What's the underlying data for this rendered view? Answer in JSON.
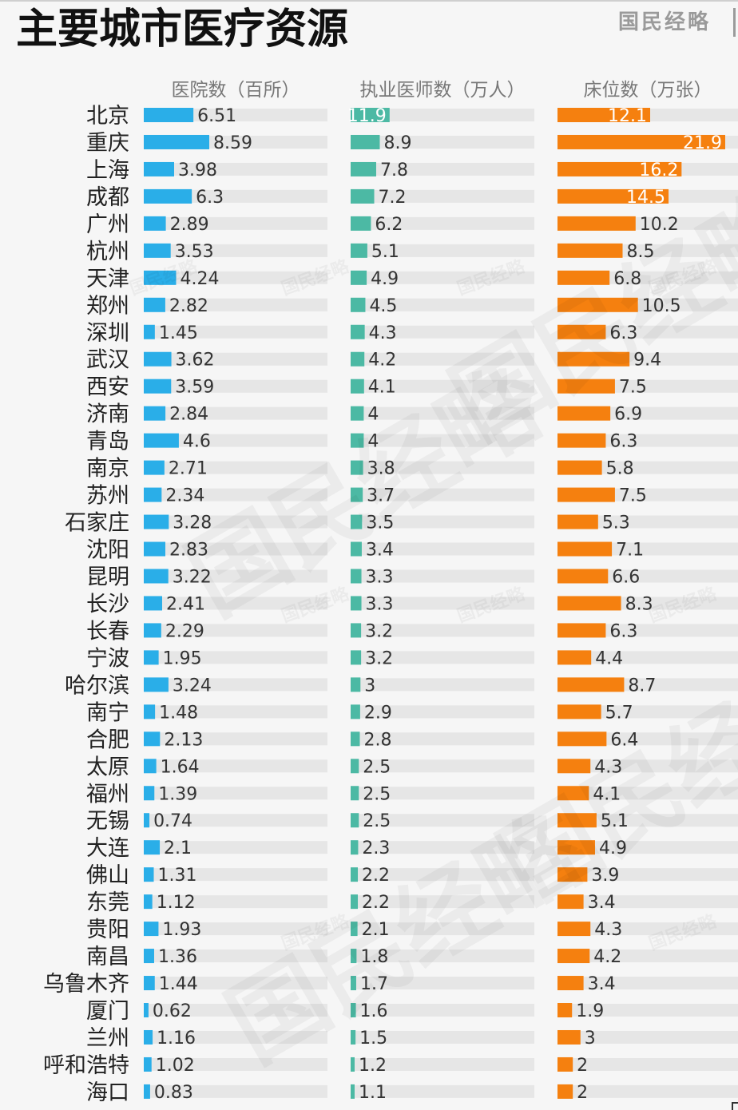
{
  "title": "主要城市医疗资源",
  "logo": "国民经略",
  "watermark": "国民经略",
  "colors": {
    "hospitals": "#2aaee8",
    "doctors": "#4cb9a4",
    "beds": "#f5800f",
    "track": "#e6e6e6"
  },
  "chart_data": {
    "type": "bar",
    "orientation": "horizontal",
    "categories": [
      "北京",
      "重庆",
      "上海",
      "成都",
      "广州",
      "杭州",
      "天津",
      "郑州",
      "深圳",
      "武汉",
      "西安",
      "济南",
      "青岛",
      "南京",
      "苏州",
      "石家庄",
      "沈阳",
      "昆明",
      "长沙",
      "长春",
      "宁波",
      "哈尔滨",
      "南宁",
      "合肥",
      "太原",
      "福州",
      "无锡",
      "大连",
      "佛山",
      "东莞",
      "贵阳",
      "南昌",
      "乌鲁木齐",
      "厦门",
      "兰州",
      "呼和浩特",
      "海口"
    ],
    "series": [
      {
        "name": "医院数（百所）",
        "max": 8.59,
        "values": [
          6.51,
          8.59,
          3.98,
          6.3,
          2.89,
          3.53,
          4.24,
          2.82,
          1.45,
          3.62,
          3.59,
          2.84,
          4.6,
          2.71,
          2.34,
          3.28,
          2.83,
          3.22,
          2.41,
          2.29,
          1.95,
          3.24,
          1.48,
          2.13,
          1.64,
          1.39,
          0.74,
          2.1,
          1.31,
          1.12,
          1.93,
          1.36,
          1.44,
          0.62,
          1.16,
          1.02,
          0.83
        ]
      },
      {
        "name": "执业医师数（万人）",
        "max": 20.0,
        "values": [
          11.9,
          8.9,
          7.8,
          7.2,
          6.2,
          5.1,
          4.9,
          4.5,
          4.3,
          4.2,
          4.1,
          4,
          4,
          3.8,
          3.7,
          3.5,
          3.4,
          3.3,
          3.3,
          3.2,
          3.2,
          3,
          2.9,
          2.8,
          2.5,
          2.5,
          2.5,
          2.3,
          2.2,
          2.2,
          2.1,
          1.8,
          1.7,
          1.6,
          1.5,
          1.2,
          1.1
        ]
      },
      {
        "name": "床位数（万张）",
        "max": 21.9,
        "values": [
          12.1,
          21.9,
          16.2,
          14.5,
          10.2,
          8.5,
          6.8,
          10.5,
          6.3,
          9.4,
          7.5,
          6.9,
          6.3,
          5.8,
          7.5,
          5.3,
          7.1,
          6.6,
          8.3,
          6.3,
          4.4,
          8.7,
          5.7,
          6.4,
          4.3,
          4.1,
          5.1,
          4.9,
          3.9,
          3.4,
          4.3,
          4.2,
          3.4,
          1.9,
          3,
          2,
          2
        ]
      }
    ]
  }
}
